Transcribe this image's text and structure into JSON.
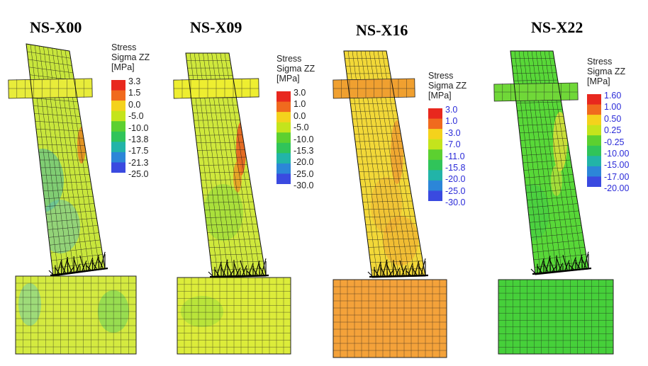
{
  "panels": [
    {
      "id": "x00",
      "title": "NS-X00",
      "legend": {
        "line1": "Stress",
        "line2": "Sigma ZZ",
        "unit": "[MPa]",
        "ticks": [
          "3.3",
          "1.5",
          "0.0",
          "-5.0",
          "-10.0",
          "-13.8",
          "-17.5",
          "-21.3",
          "-25.0"
        ]
      },
      "base_color": "#c8e63c",
      "cap_color": "#e8ec3a",
      "foot_color": "#d4ea40"
    },
    {
      "id": "x09",
      "title": "NS-X09",
      "legend": {
        "line1": "Stress",
        "line2": "Sigma ZZ",
        "unit": "[MPa]",
        "ticks": [
          "3.0",
          "1.0",
          "0.0",
          "-5.0",
          "-10.0",
          "-15.3",
          "-20.0",
          "-25.0",
          "-30.0"
        ]
      },
      "base_color": "#cfe83c",
      "cap_color": "#eeee30",
      "foot_color": "#dcec3a"
    },
    {
      "id": "x16",
      "title": "NS-X16",
      "legend": {
        "line1": "Stress",
        "line2": "Sigma ZZ",
        "unit": "[MPa]",
        "ticks": [
          "3.0",
          "1.0",
          "-3.0",
          "-7.0",
          "-11.0",
          "-15.8",
          "-20.0",
          "-25.0",
          "-30.0"
        ]
      },
      "base_color": "#f2d838",
      "cap_color": "#f0a030",
      "foot_color": "#f4a23a"
    },
    {
      "id": "x22",
      "title": "NS-X22",
      "legend": {
        "line1": "Stress",
        "line2": "Sigma ZZ",
        "unit": "[MPa]",
        "ticks": [
          "1.60",
          "1.00",
          "0.50",
          "0.25",
          "-0.25",
          "-10.00",
          "-15.00",
          "-17.00",
          "-20.00"
        ]
      },
      "base_color": "#58d838",
      "cap_color": "#70d838",
      "foot_color": "#46d03a"
    }
  ]
}
